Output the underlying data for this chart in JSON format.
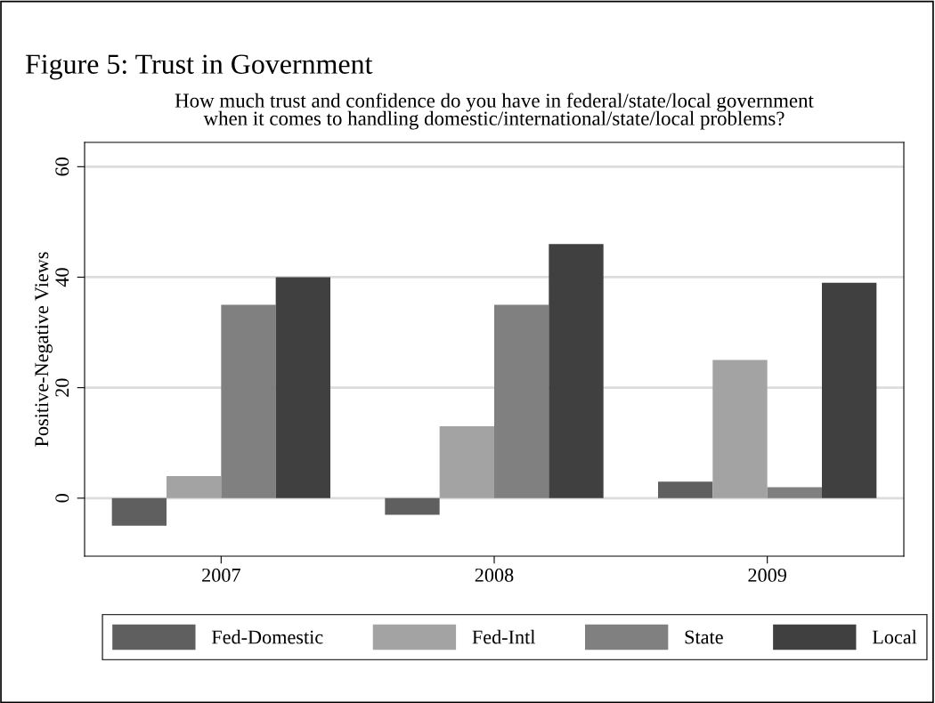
{
  "chart_data": {
    "type": "bar",
    "title": "Figure 5: Trust in Government",
    "subtitle": "How much trust and confidence do you have in federal/state/local government\nwhen it comes to handling domestic/international/state/local problems?",
    "ylabel": "Positive-Negative Views",
    "categories": [
      "2007",
      "2008",
      "2009"
    ],
    "series": [
      {
        "name": "Fed-Domestic",
        "color": "#5f5f5f",
        "values": [
          -5,
          -3,
          3
        ]
      },
      {
        "name": "Fed-Intl",
        "color": "#a3a3a3",
        "values": [
          4,
          13,
          25
        ]
      },
      {
        "name": "State",
        "color": "#808080",
        "values": [
          35,
          35,
          2
        ]
      },
      {
        "name": "Local",
        "color": "#404040",
        "values": [
          40,
          46,
          39
        ]
      }
    ],
    "ylim": [
      -10.5,
      64.4
    ],
    "yticks": [
      0,
      20,
      40,
      60
    ],
    "grid": "y",
    "legend": "bottom"
  }
}
